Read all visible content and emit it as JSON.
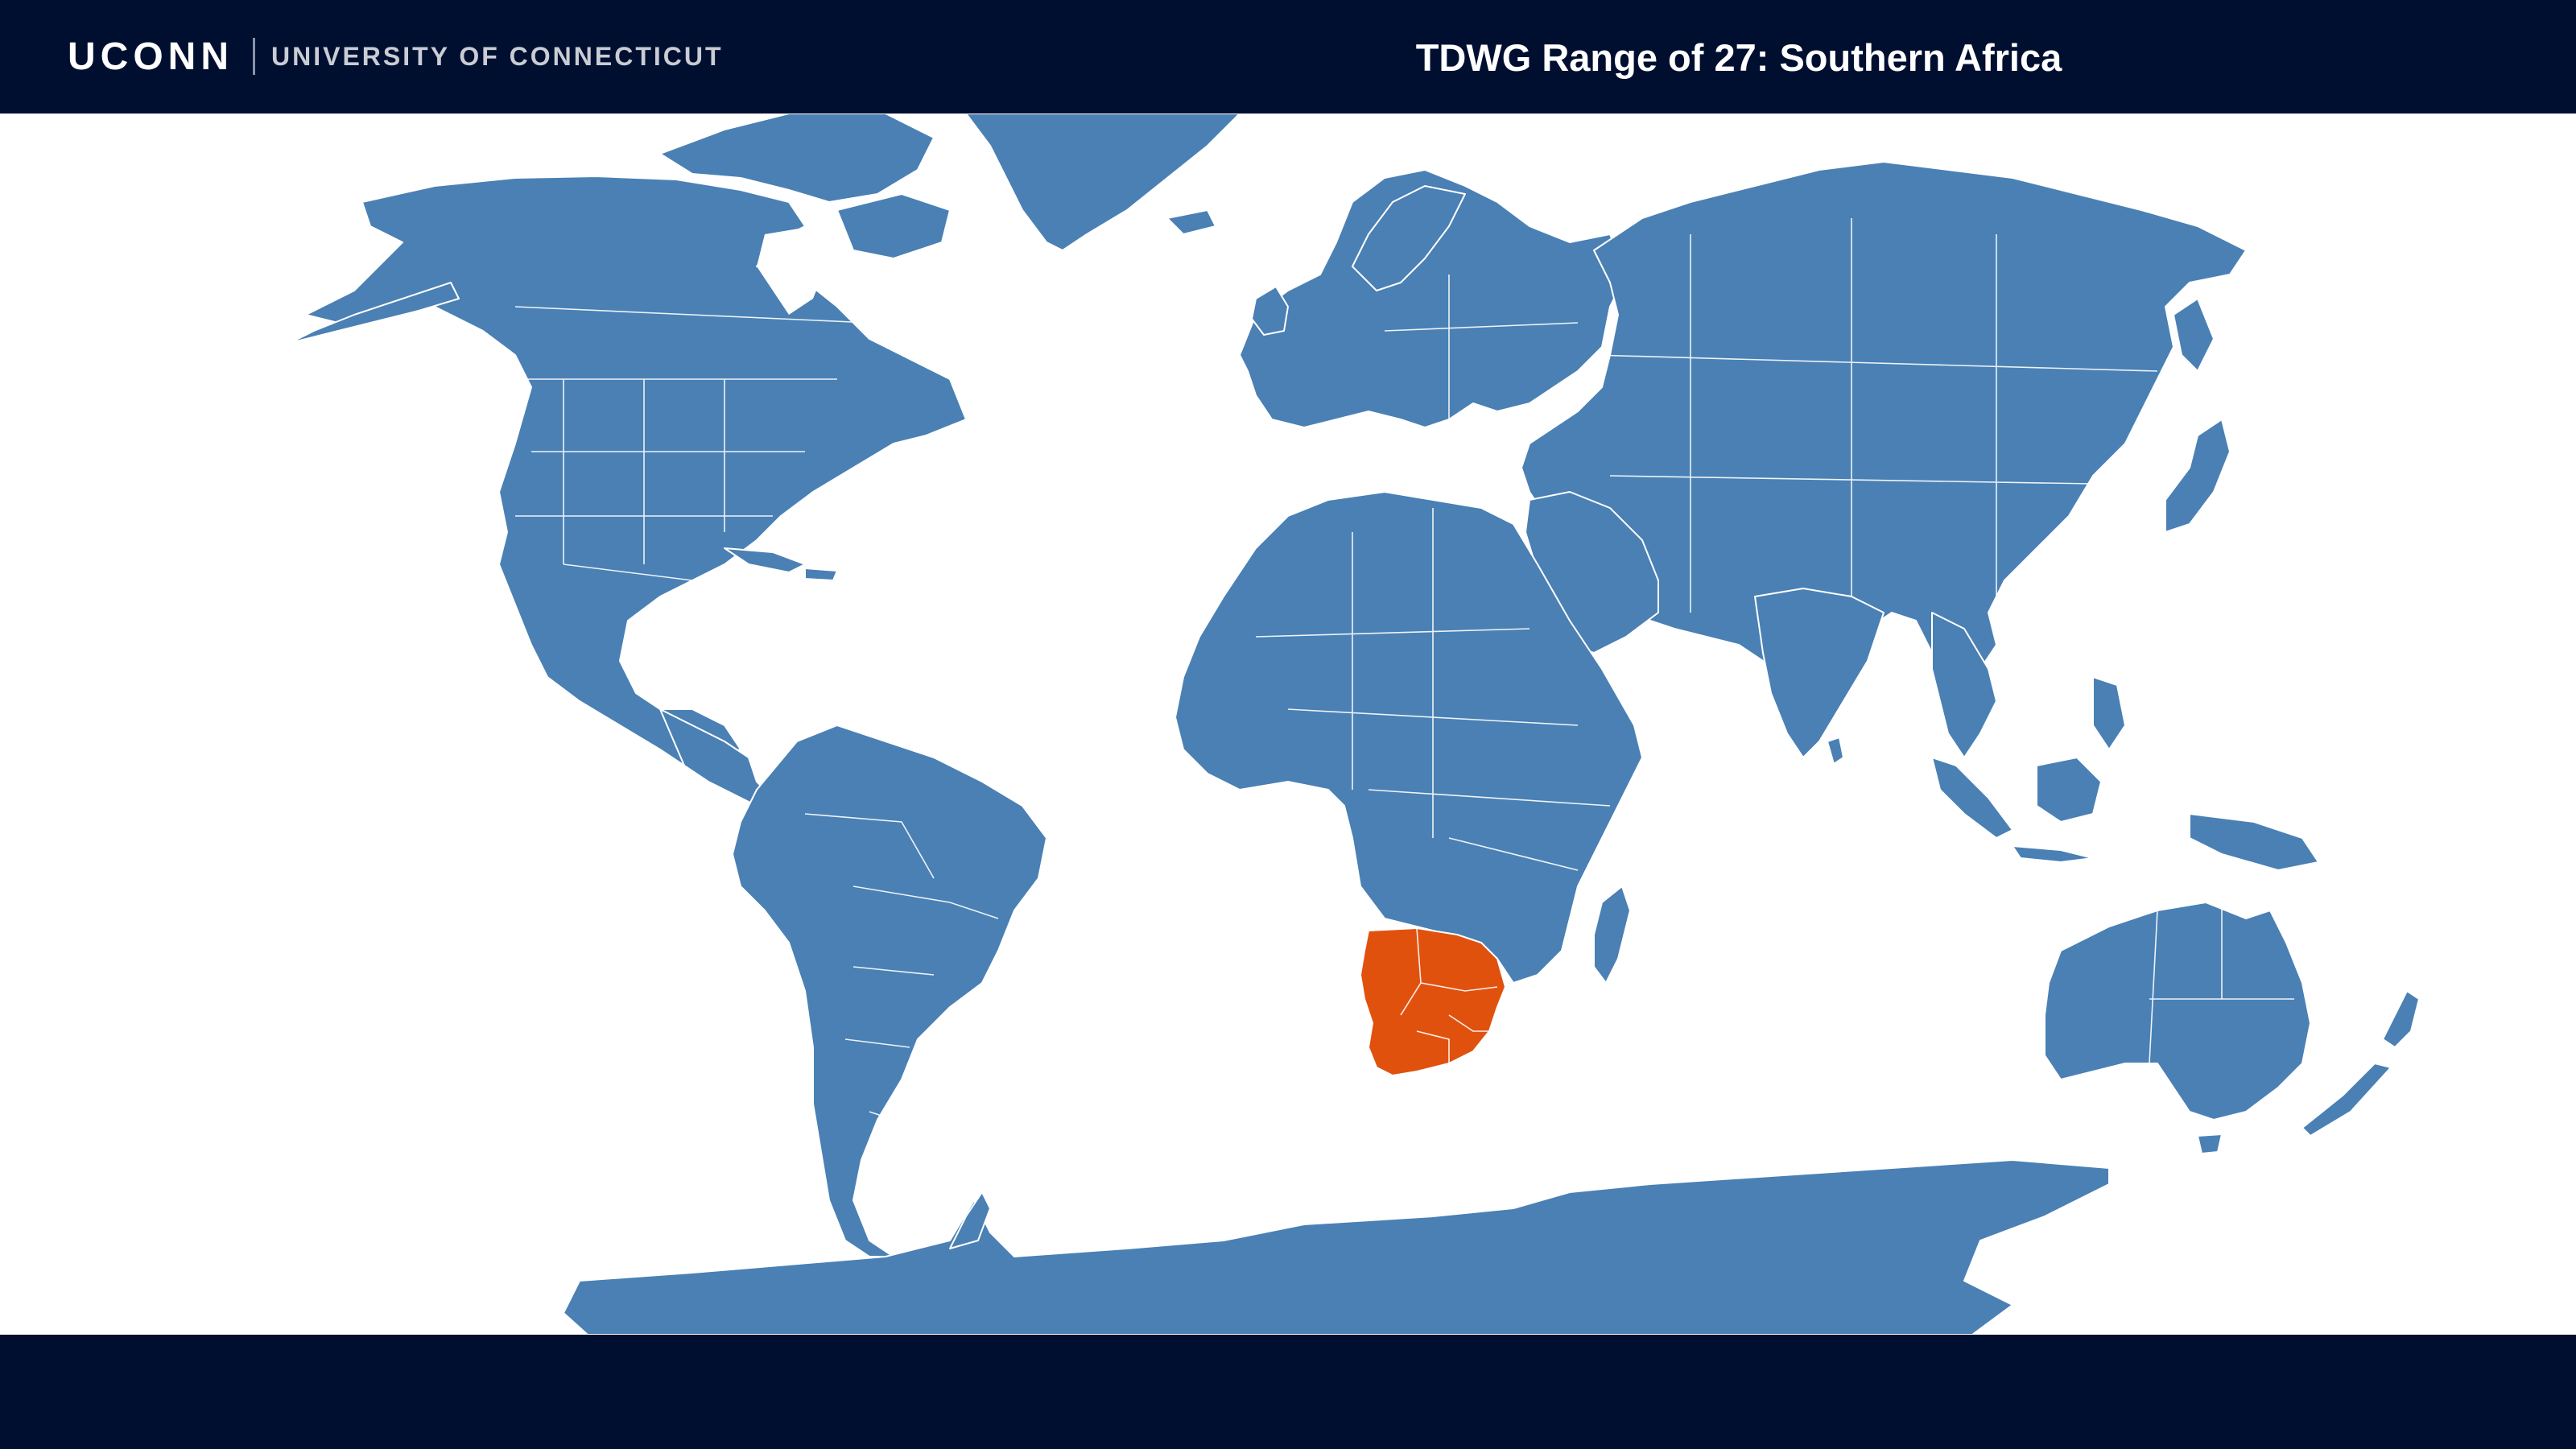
{
  "header": {
    "brand_mark": "UCONN",
    "brand_sub": "UNIVERSITY OF CONNECTICUT",
    "title": "TDWG Range of 27: Southern Africa"
  },
  "map": {
    "land_color": "#4a80b4",
    "highlight_color": "#e1510e",
    "highlighted_region": "Southern Africa",
    "background_color": "#ffffff",
    "bar_color": "#000f30"
  }
}
